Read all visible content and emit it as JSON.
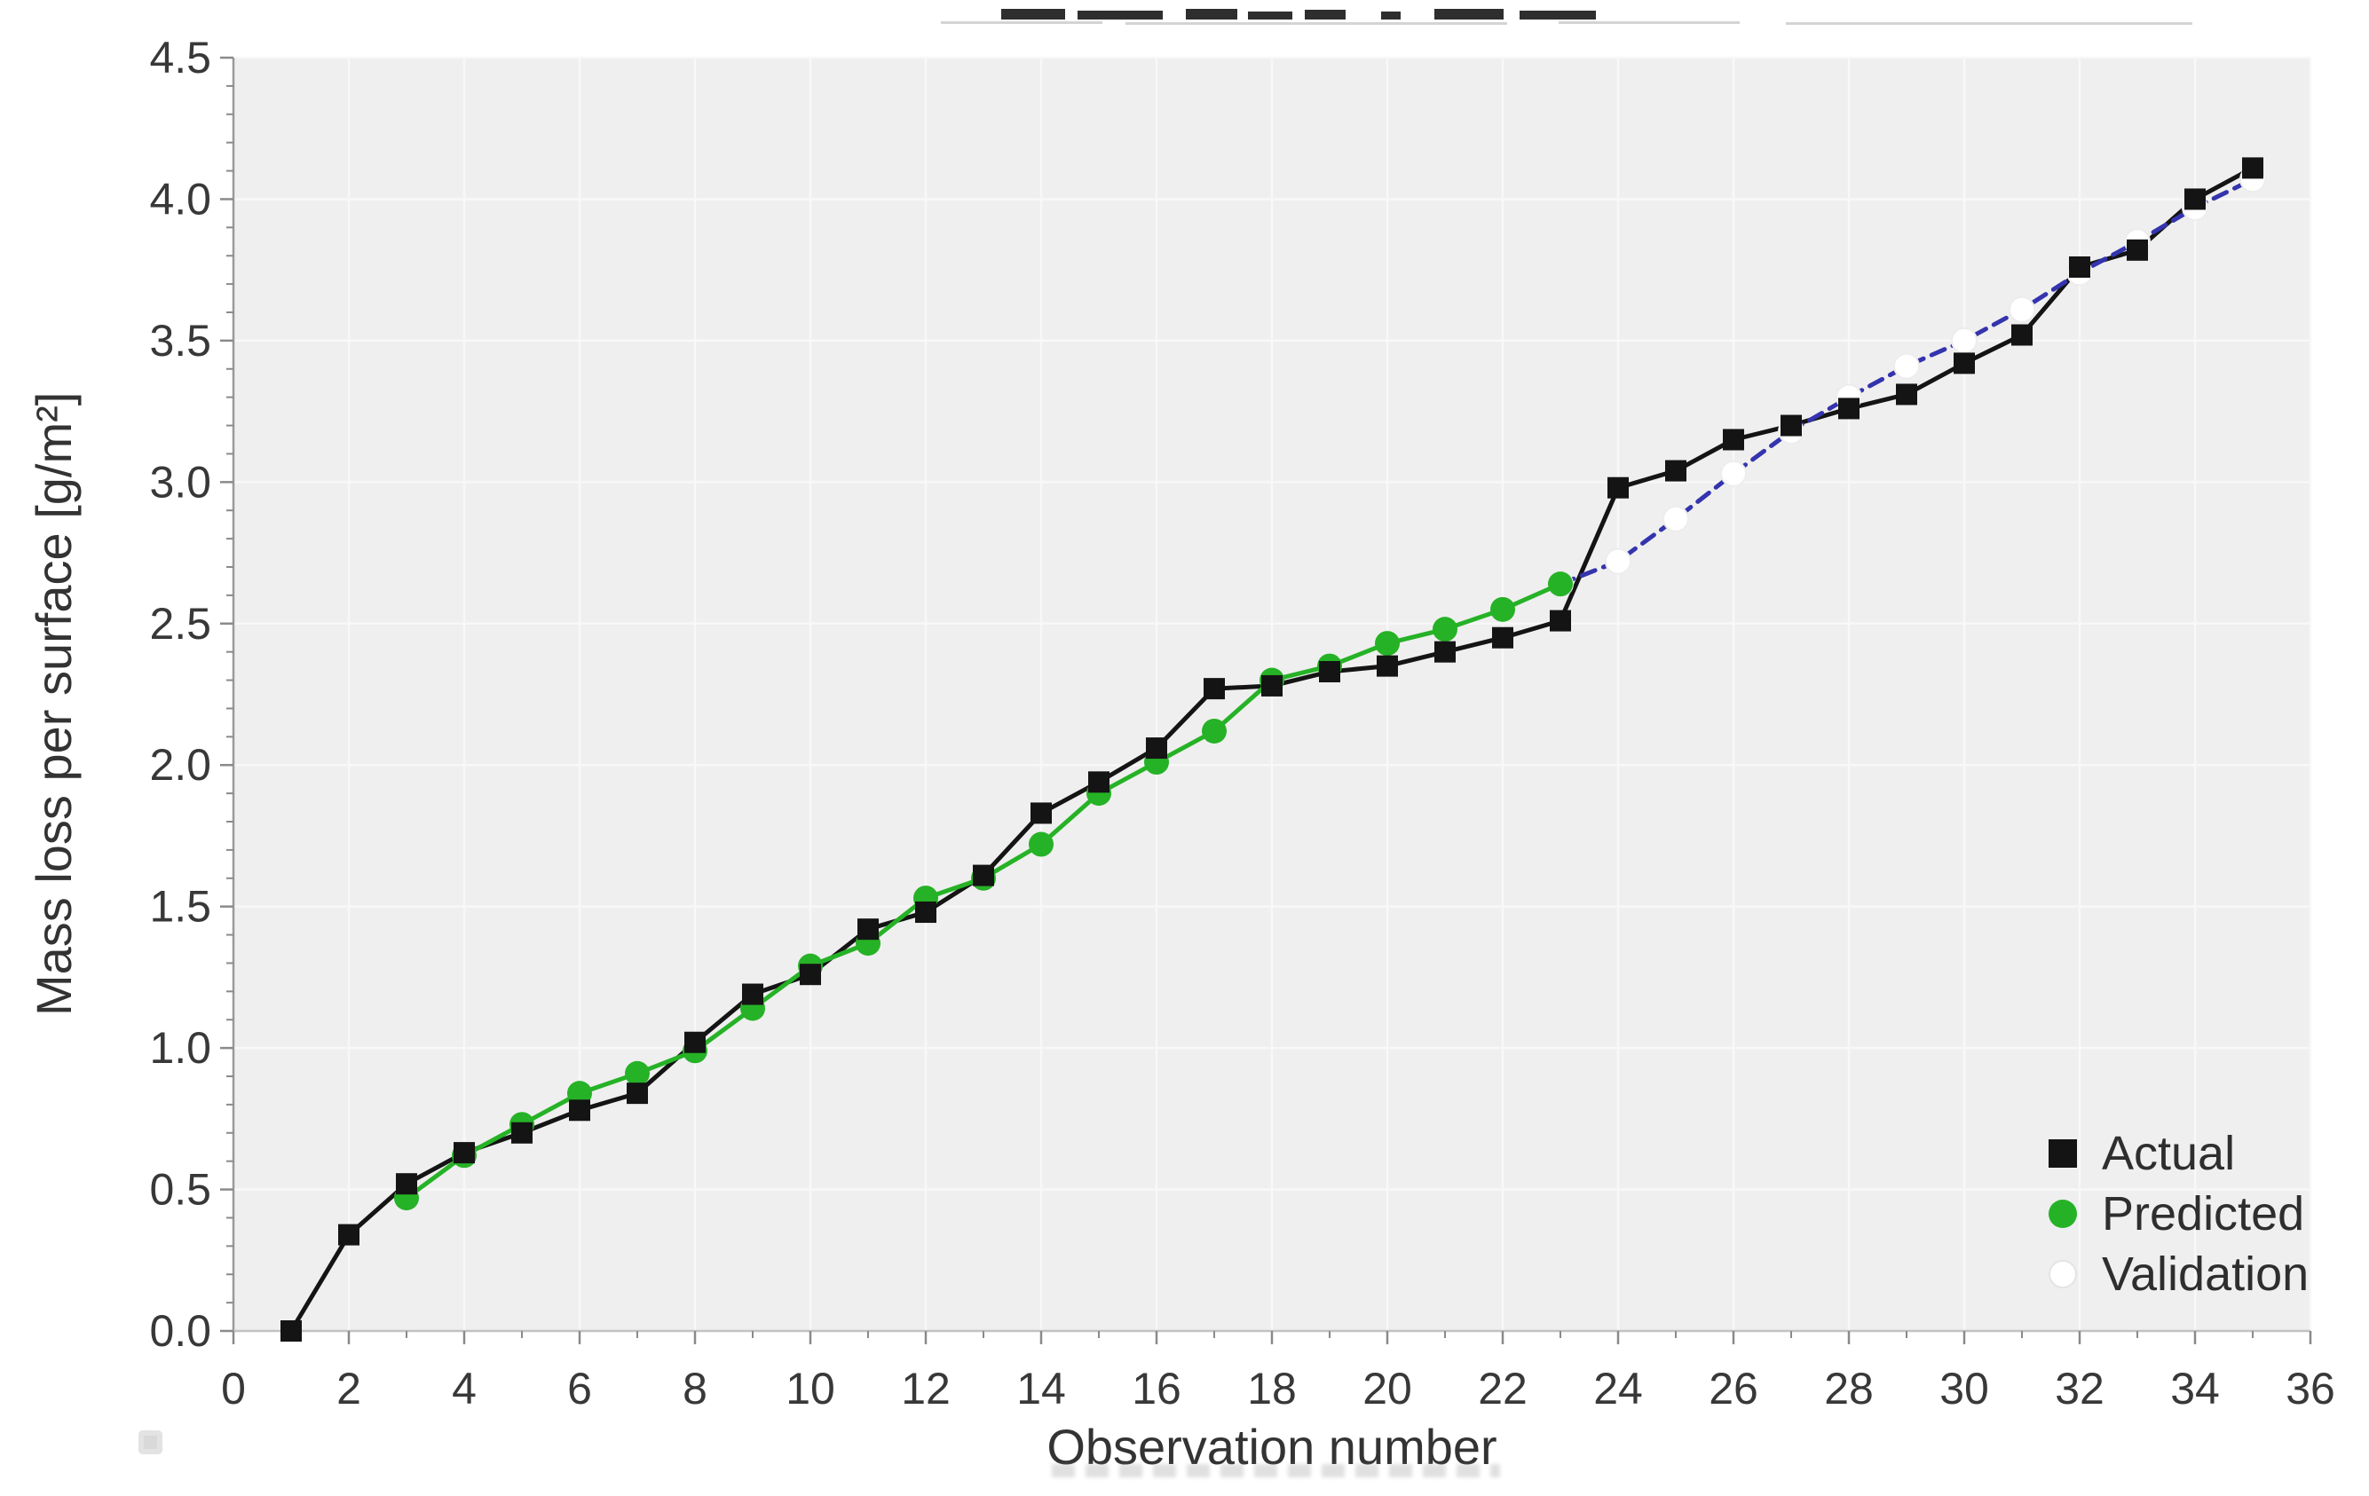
{
  "figure": {
    "background": "#ffffff",
    "artifacts": {
      "top_edge": "bottom slivers of a cropped text line with thin underlines",
      "bottom_left": "small light-gray square",
      "below_x_title": "faint blurred remnant of cropped caption text"
    }
  },
  "legend": {
    "position": "lower-right inside plot",
    "items": [
      {
        "label": "Actual",
        "marker": "black-square"
      },
      {
        "label": "Predicted",
        "marker": "green-circle"
      },
      {
        "label": "Validation",
        "marker": "white-circle"
      }
    ]
  },
  "chart_data": {
    "type": "line",
    "title": "",
    "xlabel": "Observation number",
    "ylabel": "Mass loss per surface [g/m²]",
    "xlim": [
      0,
      36
    ],
    "ylim": [
      0,
      4.5
    ],
    "x_ticks": [
      0,
      2,
      4,
      6,
      8,
      10,
      12,
      14,
      16,
      18,
      20,
      22,
      24,
      26,
      28,
      30,
      32,
      34,
      36
    ],
    "y_ticks": [
      0,
      0.5,
      1,
      1.5,
      2,
      2.5,
      3,
      3.5,
      4,
      4.5
    ],
    "x_minor_step": 1,
    "y_minor_step": 0.1,
    "grid": true,
    "legend_position": "lower right",
    "colors": {
      "plot_bg": "#efefef",
      "grid": "#f8f8f8",
      "axis_left": "#9a9a9a",
      "axis_bottom": "#c2c2c2",
      "tick": "#8a8a8a",
      "tick_text": "#383838"
    },
    "series": [
      {
        "name": "Actual",
        "color": "#141414",
        "line_style": "solid",
        "marker": "square",
        "marker_fill": "#141414",
        "x": [
          1,
          2,
          3,
          4,
          5,
          6,
          7,
          8,
          9,
          10,
          11,
          12,
          13,
          14,
          15,
          16,
          17,
          18,
          19,
          20,
          21,
          22,
          23,
          24,
          25,
          26,
          27,
          28,
          29,
          30,
          31,
          32,
          33,
          34,
          35
        ],
        "y": [
          0.0,
          0.34,
          0.52,
          0.63,
          0.7,
          0.78,
          0.84,
          1.02,
          1.19,
          1.26,
          1.42,
          1.48,
          1.61,
          1.83,
          1.94,
          2.06,
          2.27,
          2.28,
          2.33,
          2.35,
          2.4,
          2.45,
          2.51,
          2.98,
          3.04,
          3.15,
          3.2,
          3.26,
          3.31,
          3.42,
          3.52,
          3.76,
          3.82,
          4.0,
          4.11
        ]
      },
      {
        "name": "Predicted",
        "color": "#26b226",
        "line_style": "solid",
        "marker": "circle",
        "marker_fill": "#26b226",
        "x": [
          3,
          4,
          5,
          6,
          7,
          8,
          9,
          10,
          11,
          12,
          13,
          14,
          15,
          16,
          17,
          18,
          19,
          20,
          21,
          22,
          23
        ],
        "y": [
          0.47,
          0.62,
          0.73,
          0.84,
          0.91,
          0.99,
          1.14,
          1.29,
          1.37,
          1.53,
          1.6,
          1.72,
          1.9,
          2.01,
          2.12,
          2.3,
          2.35,
          2.43,
          2.48,
          2.55,
          2.64
        ]
      },
      {
        "name": "Validation",
        "color": "#3434ae",
        "line_style": "dashed",
        "marker": "circle",
        "marker_fill": "#ffffff",
        "marker_stroke": "#ededed",
        "x": [
          23,
          24,
          25,
          26,
          27,
          28,
          29,
          30,
          31,
          32,
          33,
          34,
          35
        ],
        "y": [
          2.64,
          2.72,
          2.87,
          3.03,
          3.18,
          3.3,
          3.41,
          3.5,
          3.61,
          3.74,
          3.85,
          3.97,
          4.07
        ]
      }
    ]
  }
}
